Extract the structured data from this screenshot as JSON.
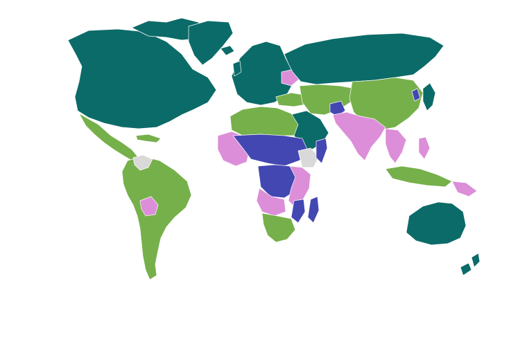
{
  "map": {
    "colors": {
      "high": "#0b6b68",
      "upper_middle": "#76b04a",
      "lower_middle": "#dc8ed8",
      "low": "#4347b2",
      "no_data": "#d9d9d9",
      "background": "#ffffff",
      "border": "#ffffff"
    },
    "regions": [
      {
        "name": "north-america",
        "category": "high"
      },
      {
        "name": "greenland",
        "category": "high"
      },
      {
        "name": "central-america",
        "category": "upper_middle"
      },
      {
        "name": "south-america",
        "category": "upper_middle"
      },
      {
        "name": "bolivia",
        "category": "lower_middle"
      },
      {
        "name": "venezuela",
        "category": "no_data"
      },
      {
        "name": "europe",
        "category": "high"
      },
      {
        "name": "russia",
        "category": "high"
      },
      {
        "name": "ukraine",
        "category": "lower_middle"
      },
      {
        "name": "north-africa",
        "category": "upper_middle"
      },
      {
        "name": "sahel",
        "category": "low"
      },
      {
        "name": "west-africa",
        "category": "lower_middle"
      },
      {
        "name": "central-africa",
        "category": "low"
      },
      {
        "name": "east-africa",
        "category": "lower_middle"
      },
      {
        "name": "ethiopia",
        "category": "no_data"
      },
      {
        "name": "southern-africa",
        "category": "upper_middle"
      },
      {
        "name": "madagascar",
        "category": "low"
      },
      {
        "name": "arabian-peninsula",
        "category": "high"
      },
      {
        "name": "iran-central-asia",
        "category": "upper_middle"
      },
      {
        "name": "afghanistan",
        "category": "low"
      },
      {
        "name": "south-asia",
        "category": "lower_middle"
      },
      {
        "name": "china",
        "category": "upper_middle"
      },
      {
        "name": "japan-korea",
        "category": "high"
      },
      {
        "name": "southeast-asia",
        "category": "lower_middle"
      },
      {
        "name": "indonesia",
        "category": "upper_middle"
      },
      {
        "name": "australia",
        "category": "high"
      },
      {
        "name": "new-zealand",
        "category": "high"
      }
    ]
  }
}
